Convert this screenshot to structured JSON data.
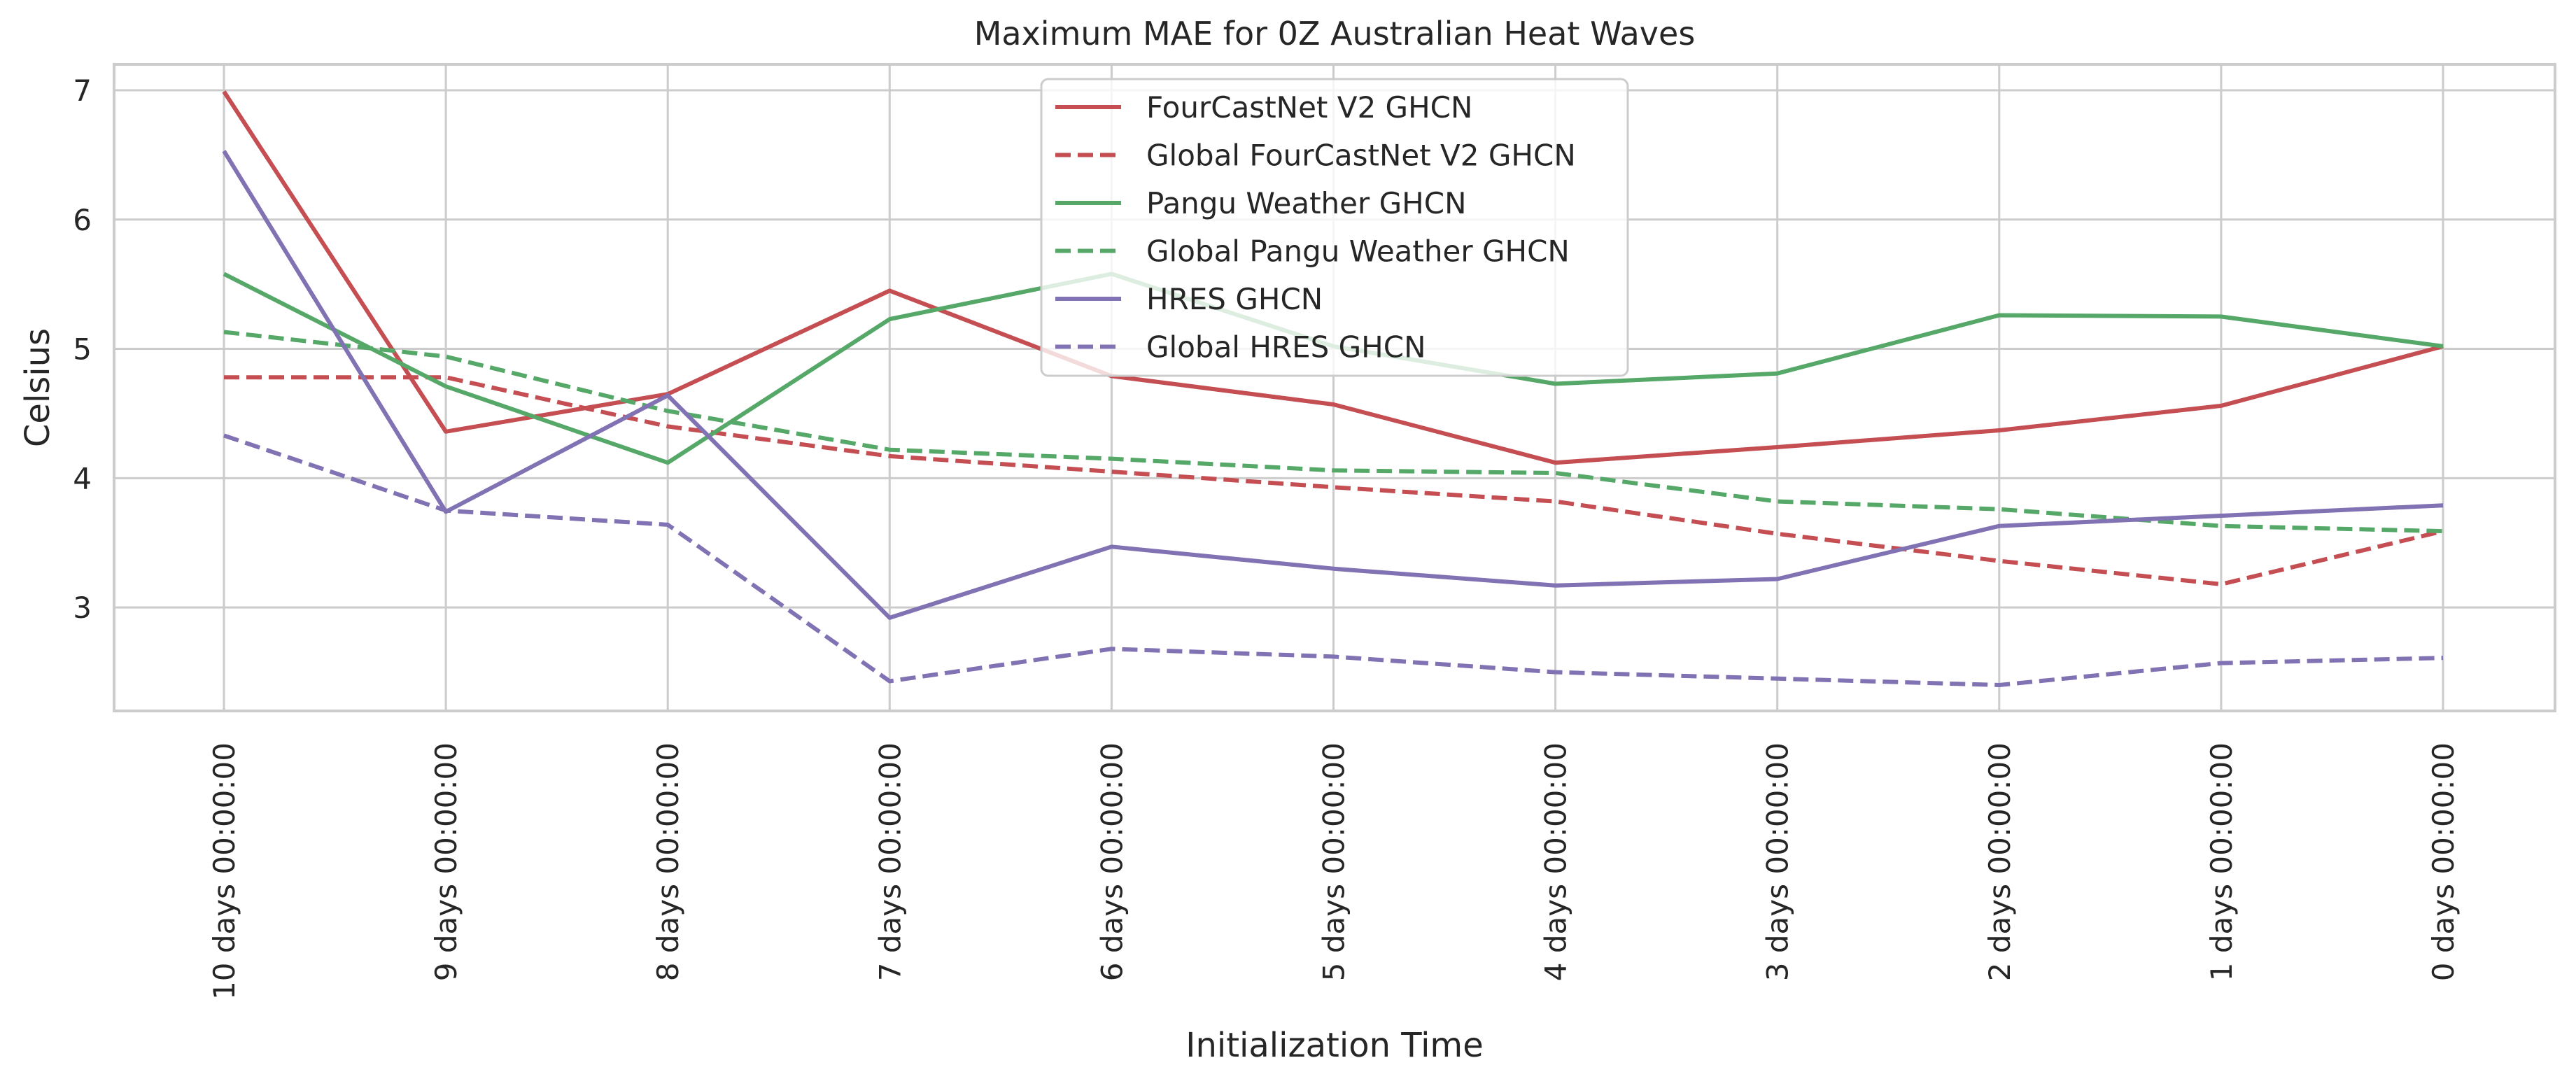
{
  "chart_data": {
    "type": "line",
    "title": "Maximum MAE for 0Z Australian Heat Waves",
    "xlabel": "Initialization Time",
    "ylabel": "Celsius",
    "categories": [
      "10 days 00:00:00",
      "9 days 00:00:00",
      "8 days 00:00:00",
      "7 days 00:00:00",
      "6 days 00:00:00",
      "5 days 00:00:00",
      "4 days 00:00:00",
      "3 days 00:00:00",
      "2 days 00:00:00",
      "1 days 00:00:00",
      "0 days 00:00:00"
    ],
    "yticks": [
      3,
      4,
      5,
      6,
      7
    ],
    "ylim": [
      2.2,
      7.2
    ],
    "grid": true,
    "legend_position": "upper center",
    "series": [
      {
        "name": "FourCastNet V2 GHCN",
        "color": "#c44e52",
        "dash": "solid",
        "values": [
          6.99,
          4.36,
          4.65,
          5.45,
          4.79,
          4.57,
          4.12,
          4.24,
          4.37,
          4.56,
          5.02
        ]
      },
      {
        "name": "Global FourCastNet V2 GHCN",
        "color": "#c44e52",
        "dash": "dashed",
        "values": [
          4.78,
          4.78,
          4.4,
          4.17,
          4.05,
          3.93,
          3.82,
          3.57,
          3.36,
          3.18,
          3.59
        ]
      },
      {
        "name": "Pangu Weather GHCN",
        "color": "#55a868",
        "dash": "solid",
        "values": [
          5.58,
          4.71,
          4.12,
          5.23,
          5.58,
          5.02,
          4.73,
          4.81,
          5.26,
          5.25,
          5.02
        ]
      },
      {
        "name": "Global Pangu Weather GHCN",
        "color": "#55a868",
        "dash": "dashed",
        "values": [
          5.13,
          4.94,
          4.52,
          4.22,
          4.15,
          4.06,
          4.04,
          3.82,
          3.76,
          3.63,
          3.59
        ]
      },
      {
        "name": "HRES GHCN",
        "color": "#8172b3",
        "dash": "solid",
        "values": [
          6.53,
          3.74,
          4.64,
          2.92,
          3.47,
          3.3,
          3.17,
          3.22,
          3.63,
          3.71,
          3.79
        ]
      },
      {
        "name": "Global HRES GHCN",
        "color": "#8172b3",
        "dash": "dashed",
        "values": [
          4.33,
          3.75,
          3.64,
          2.43,
          2.68,
          2.62,
          2.5,
          2.45,
          2.4,
          2.57,
          2.61
        ]
      }
    ]
  }
}
